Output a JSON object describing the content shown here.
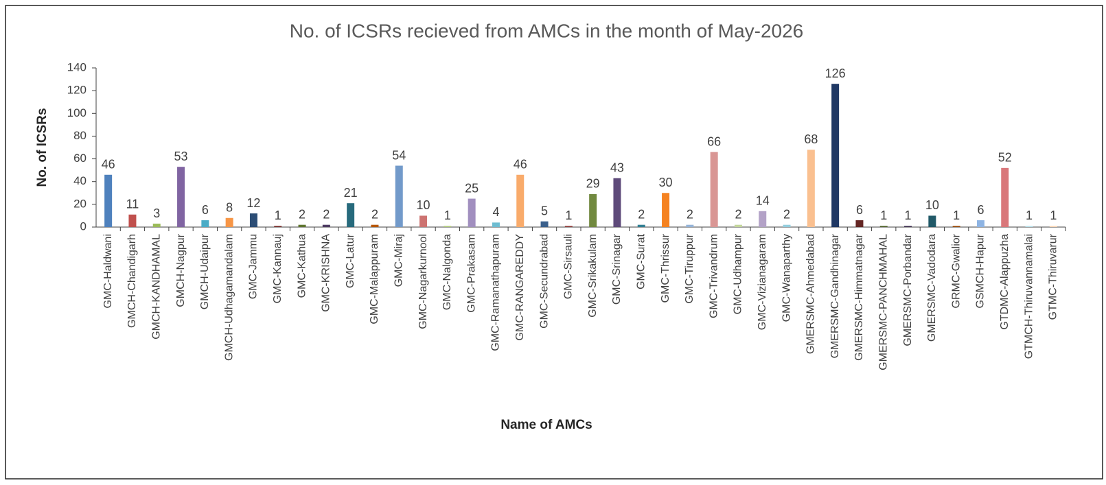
{
  "chart_data": {
    "type": "bar",
    "title": "No. of ICSRs recieved from AMCs in the month of  May-2026",
    "x_label": "Name  of AMCs",
    "y_label": "No. of ICSRs",
    "categories": [
      "GMC-Haldwani",
      "GMCH-Chandigarh",
      "GMCH-KANDHAMAL",
      "GMCH-Nagpur",
      "GMCH-Udaipur",
      "GMCH-Udhagamandalam",
      "GMC-Jammu",
      "GMC-Kannauj",
      "GMC-Kathua",
      "GMC-KRISHNA",
      "GMC-Latur",
      "GMC-Malappuram",
      "GMC-Miraj",
      "GMC-Nagarkurnool",
      "GMC-Nalgonda",
      "GMC-Prakasam",
      "GMC-Ramanathapuram",
      "GMC-RANGAREDDY",
      "GMC-Secundrabad",
      "GMC-Sirsauli",
      "GMC-Srikakulam",
      "GMC-Srinagar",
      "GMC-Surat",
      "GMC-Thrissur",
      "GMC-Tiruppur",
      "GMC-Trivandrum",
      "GMC-Udhampur",
      "GMC-Vizianagaram",
      "GMC-Wanaparthy",
      "GMERSMC-Ahmedabad",
      "GMERSMC-Gandhinagar",
      "GMERSMC-Himmatnagar",
      "GMERSMC-PANCHMAHAL",
      "GMERSMC-Porbandar",
      "GMERSMC-Vadodara",
      "GRMC-Gwalior",
      "GSMCH-Hapur",
      "GTDMC-Alappuzha",
      "GTMCH-Thiruvannamalai",
      "GTMC-Thiruvarur"
    ],
    "values": [
      46,
      11,
      3,
      53,
      6,
      8,
      12,
      1,
      2,
      2,
      21,
      2,
      54,
      10,
      1,
      25,
      4,
      46,
      5,
      1,
      29,
      43,
      2,
      30,
      2,
      66,
      2,
      14,
      2,
      68,
      126,
      6,
      1,
      1,
      10,
      1,
      6,
      52,
      1,
      1
    ],
    "colors": [
      "#4f81bd",
      "#c0504d",
      "#9bbb59",
      "#8064a2",
      "#4bacc6",
      "#f79646",
      "#2c4d75",
      "#772c2a",
      "#5f7530",
      "#4d3b62",
      "#276a7c",
      "#b65708",
      "#729aca",
      "#cd7371",
      "#afc97a",
      "#a18fbf",
      "#6fbdd1",
      "#f9ab6b",
      "#3a5f8b",
      "#8e3b39",
      "#71893f",
      "#5e4a7a",
      "#327f93",
      "#f58220",
      "#95b3d7",
      "#d99694",
      "#c3d69b",
      "#b3a2c7",
      "#93cddd",
      "#fac090",
      "#1f3864",
      "#632523",
      "#4f6228",
      "#3f3151",
      "#215968",
      "#974806",
      "#8eb4e3",
      "#d9777a",
      "#b7dee8",
      "#fcd5b4"
    ],
    "ylim": [
      0,
      140
    ],
    "yticks": [
      0,
      20,
      40,
      60,
      80,
      100,
      120,
      140
    ],
    "grid": false
  }
}
